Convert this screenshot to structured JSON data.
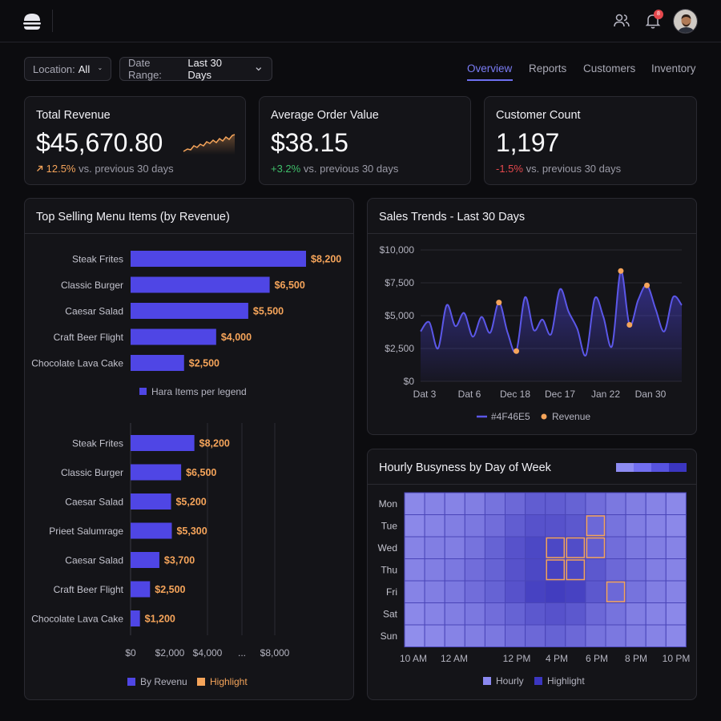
{
  "header": {
    "logo_icon": "burger-icon",
    "users_icon": "users-icon",
    "bell_icon": "bell-icon",
    "notification_count": "8"
  },
  "filters": {
    "location_label": "Location:",
    "location_value": "All",
    "date_label": "Date Range:",
    "date_value": "Last 30 Days"
  },
  "tabs": [
    {
      "label": "Overview",
      "active": true
    },
    {
      "label": "Reports",
      "active": false
    },
    {
      "label": "Customers",
      "active": false
    },
    {
      "label": "Inventory",
      "active": false
    }
  ],
  "kpis": [
    {
      "title": "Total Revenue",
      "value": "$45,670.80",
      "change": "12.5%",
      "suffix": "vs. previous 30 days",
      "direction": "up"
    },
    {
      "title": "Average Order Value",
      "value": "$38.15",
      "change": "+3.2%",
      "suffix": "vs. previous 30 days",
      "direction": "up"
    },
    {
      "title": "Customer Count",
      "value": "1,197",
      "change": "-1.5%",
      "suffix": "vs. previous 30 days",
      "direction": "down"
    }
  ],
  "colors": {
    "accent": "#4F46E5",
    "highlight": "#F5A45A",
    "positive": "#3FBF6A",
    "negative": "#E5484D",
    "bar": "#4F46E5"
  },
  "top_selling": {
    "title": "Top Selling Menu Items (by Revenue)",
    "legend_top": "Hara Items  per legend",
    "legend_bottom": [
      "By Revenu",
      "Highlight"
    ]
  },
  "sales_trends": {
    "title": "Sales Trends - Last 30 Days",
    "legend": [
      "#4F46E5",
      "Revenue"
    ]
  },
  "heatmap": {
    "title": "Hourly Busyness by Day of Week",
    "legend": [
      "Hourly",
      "Highlight"
    ]
  },
  "chart_data": [
    {
      "type": "bar",
      "orientation": "horizontal",
      "categories": [
        "Steak Frites",
        "Classic Burger",
        "Caesar Salad",
        "Craft Beer Flight",
        "Chocolate Lava Cake"
      ],
      "values": [
        8200,
        6500,
        5500,
        4000,
        2500
      ],
      "value_labels": [
        "$8,200",
        "$6,500",
        "$5,500",
        "$4,000",
        "$2,500"
      ],
      "xlim": [
        0,
        9000
      ]
    },
    {
      "type": "bar",
      "orientation": "horizontal",
      "categories": [
        "Steak Frites",
        "Classic Burger",
        "Caesar Salad",
        "Prieet Salumrage",
        "Caesar Salad",
        "Craft Beer Flight",
        "Chocolate Lava Cake"
      ],
      "values": [
        8200,
        6500,
        5200,
        5300,
        3700,
        2500,
        1200
      ],
      "value_labels": [
        "$8,200",
        "$6,500",
        "$5,200",
        "$5,300",
        "$3,700",
        "$2,500",
        "$1,200"
      ],
      "xticks": [
        "$0",
        "$2,000",
        "$4,000",
        "...",
        "$8,000"
      ],
      "xlim": [
        0,
        22000
      ]
    },
    {
      "type": "line",
      "xticks": [
        "Dat 3",
        "Dat 6",
        "Dec 18",
        "Dec 17",
        "Jan 22",
        "Dan 30"
      ],
      "yticks": [
        "$0",
        "$2,500",
        "$5,000",
        "$7,500",
        "$10,000"
      ],
      "ylim": [
        0,
        10000
      ],
      "xlim": [
        0,
        30
      ],
      "series": [
        {
          "name": "Revenue",
          "x": [
            0,
            1,
            2,
            3,
            4,
            5,
            6,
            7,
            8,
            9,
            10,
            11,
            12,
            13,
            14,
            15,
            16,
            17,
            18,
            19,
            20,
            21,
            22,
            23,
            24,
            25,
            26,
            27,
            28,
            29,
            30
          ],
          "values": [
            3800,
            4500,
            2500,
            5800,
            4200,
            5200,
            3400,
            4900,
            3700,
            6000,
            3700,
            2300,
            6400,
            3900,
            4700,
            3600,
            7000,
            5300,
            4000,
            2000,
            6300,
            4900,
            2700,
            8400,
            4300,
            6200,
            7300,
            5500,
            3800,
            6400,
            5800
          ]
        }
      ],
      "highlight_points": [
        {
          "x": 9,
          "y": 6000
        },
        {
          "x": 11,
          "y": 2300
        },
        {
          "x": 23,
          "y": 8400
        },
        {
          "x": 24,
          "y": 4300
        },
        {
          "x": 26,
          "y": 7300
        }
      ]
    },
    {
      "type": "heatmap",
      "rows": [
        "Mon",
        "Tue",
        "Wed",
        "Thu",
        "Fri",
        "Sat",
        "Sun"
      ],
      "xticks": [
        "10 AM",
        "12 AM",
        "12 PM",
        "4 PM",
        "6 PM",
        "8 PM",
        "10 PM"
      ],
      "values": [
        [
          0.2,
          0.25,
          0.25,
          0.3,
          0.4,
          0.5,
          0.6,
          0.6,
          0.55,
          0.45,
          0.35,
          0.3,
          0.25,
          0.2
        ],
        [
          0.2,
          0.25,
          0.3,
          0.35,
          0.45,
          0.6,
          0.7,
          0.7,
          0.65,
          0.5,
          0.4,
          0.3,
          0.25,
          0.2
        ],
        [
          0.25,
          0.3,
          0.3,
          0.4,
          0.55,
          0.7,
          0.8,
          0.8,
          0.75,
          0.6,
          0.45,
          0.35,
          0.3,
          0.25
        ],
        [
          0.25,
          0.3,
          0.35,
          0.45,
          0.55,
          0.7,
          0.8,
          0.85,
          0.8,
          0.65,
          0.5,
          0.4,
          0.3,
          0.25
        ],
        [
          0.25,
          0.3,
          0.35,
          0.45,
          0.55,
          0.7,
          0.85,
          0.9,
          0.85,
          0.65,
          0.5,
          0.4,
          0.3,
          0.25
        ],
        [
          0.2,
          0.25,
          0.3,
          0.35,
          0.45,
          0.55,
          0.65,
          0.7,
          0.65,
          0.5,
          0.4,
          0.3,
          0.25,
          0.2
        ],
        [
          0.15,
          0.2,
          0.25,
          0.3,
          0.35,
          0.45,
          0.5,
          0.55,
          0.5,
          0.4,
          0.35,
          0.3,
          0.25,
          0.2
        ]
      ],
      "highlight_cells": [
        [
          1,
          9
        ],
        [
          2,
          7
        ],
        [
          2,
          8
        ],
        [
          2,
          9
        ],
        [
          3,
          7
        ],
        [
          3,
          8
        ],
        [
          4,
          10
        ]
      ]
    }
  ]
}
